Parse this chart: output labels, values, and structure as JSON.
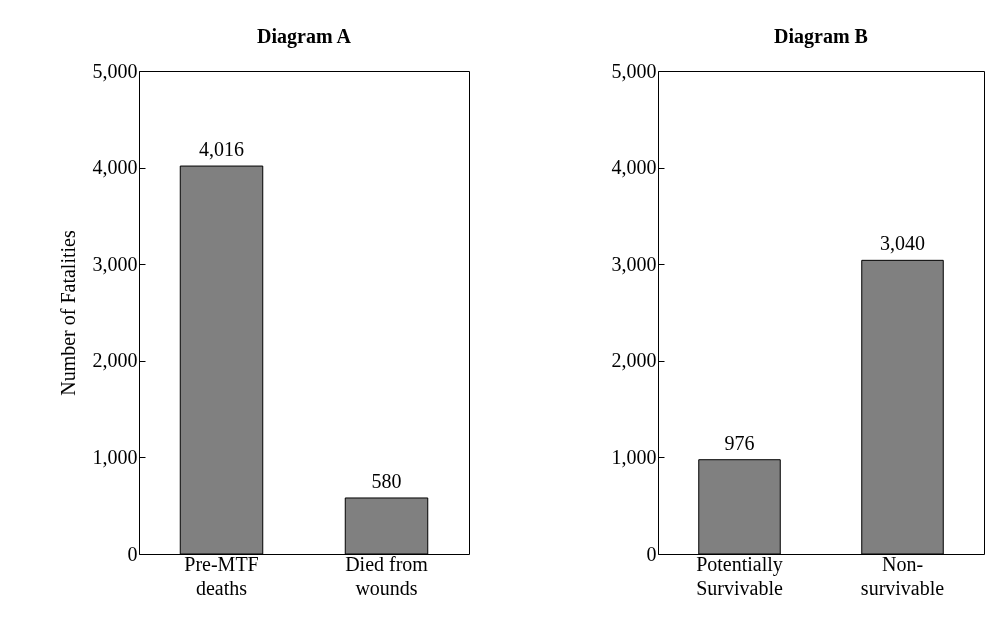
{
  "chart_data": [
    {
      "type": "bar",
      "title": "Diagram A",
      "ylabel": "Number of Fatalities",
      "categories": [
        "Pre-MTF\ndeaths",
        "Died from\nwounds"
      ],
      "values": [
        4016,
        580
      ],
      "color": "#808080",
      "ylim": [
        0,
        5000
      ],
      "yticks": [
        0,
        {
          "value": 1000,
          "label": "1,000"
        },
        {
          "value": 2000,
          "label": "2,000"
        },
        {
          "value": 3000,
          "label": "3,000"
        },
        {
          "value": 4000,
          "label": "4,000"
        },
        {
          "value": 5000,
          "label": "5,000"
        }
      ],
      "value_labels": [
        "4,016",
        "580"
      ],
      "grid": false
    },
    {
      "type": "bar",
      "title": "Diagram B",
      "categories": [
        "Potentially\nSurvivable",
        "Non-\nsurvivable"
      ],
      "values": [
        976,
        3040
      ],
      "color": "#808080",
      "ylim": [
        0,
        5000
      ],
      "yticks": [
        0,
        {
          "value": 1000,
          "label": "1,000"
        },
        {
          "value": 2000,
          "label": "2,000"
        },
        {
          "value": 3000,
          "label": "3,000"
        },
        {
          "value": 4000,
          "label": "4,000"
        },
        {
          "value": 5000,
          "label": "5,000"
        }
      ],
      "value_labels": [
        "976",
        "3,040"
      ],
      "grid": false
    }
  ]
}
